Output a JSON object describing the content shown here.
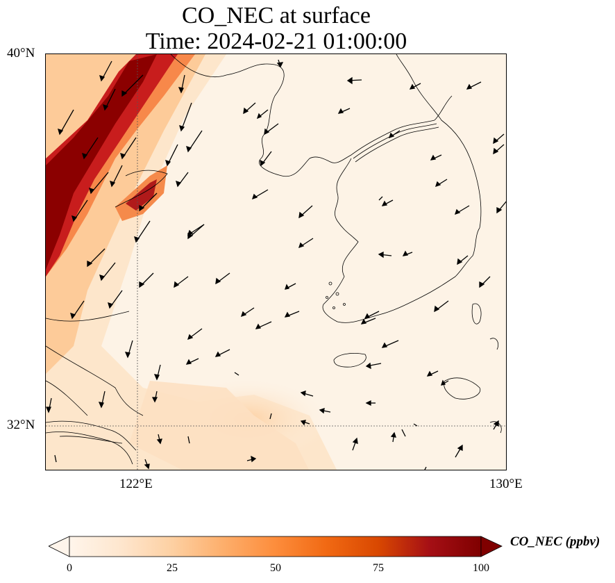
{
  "title": {
    "line1": "CO_NEC at surface",
    "line2": "Time: 2024-02-21 01:00:00"
  },
  "map": {
    "lat_labels": [
      "40°N",
      "32°N"
    ],
    "lon_labels": [
      "122°E",
      "130°E"
    ],
    "extent": {
      "lon": [
        120,
        130
      ],
      "lat": [
        31,
        40
      ]
    },
    "gridlines": {
      "lons": [
        122
      ],
      "lats": [
        32
      ]
    },
    "field_colors": [
      "#fff5eb",
      "#fde0c2",
      "#fdae6b",
      "#f16913",
      "#a50f15",
      "#7f0000"
    ],
    "wind_vectors": "shown",
    "coastlines": "shown"
  },
  "colorbar": {
    "label": "CO_NEC (ppbv)",
    "tick_labels": [
      "0",
      "25",
      "50",
      "75",
      "100"
    ],
    "range": [
      0,
      100
    ],
    "extend": "both",
    "colormap": "OrRd-like",
    "colors": [
      "#fff5eb",
      "#fee6ce",
      "#fdd0a2",
      "#fdae6b",
      "#fd8d3c",
      "#f16913",
      "#d94801",
      "#a50f15",
      "#7f0000"
    ]
  }
}
